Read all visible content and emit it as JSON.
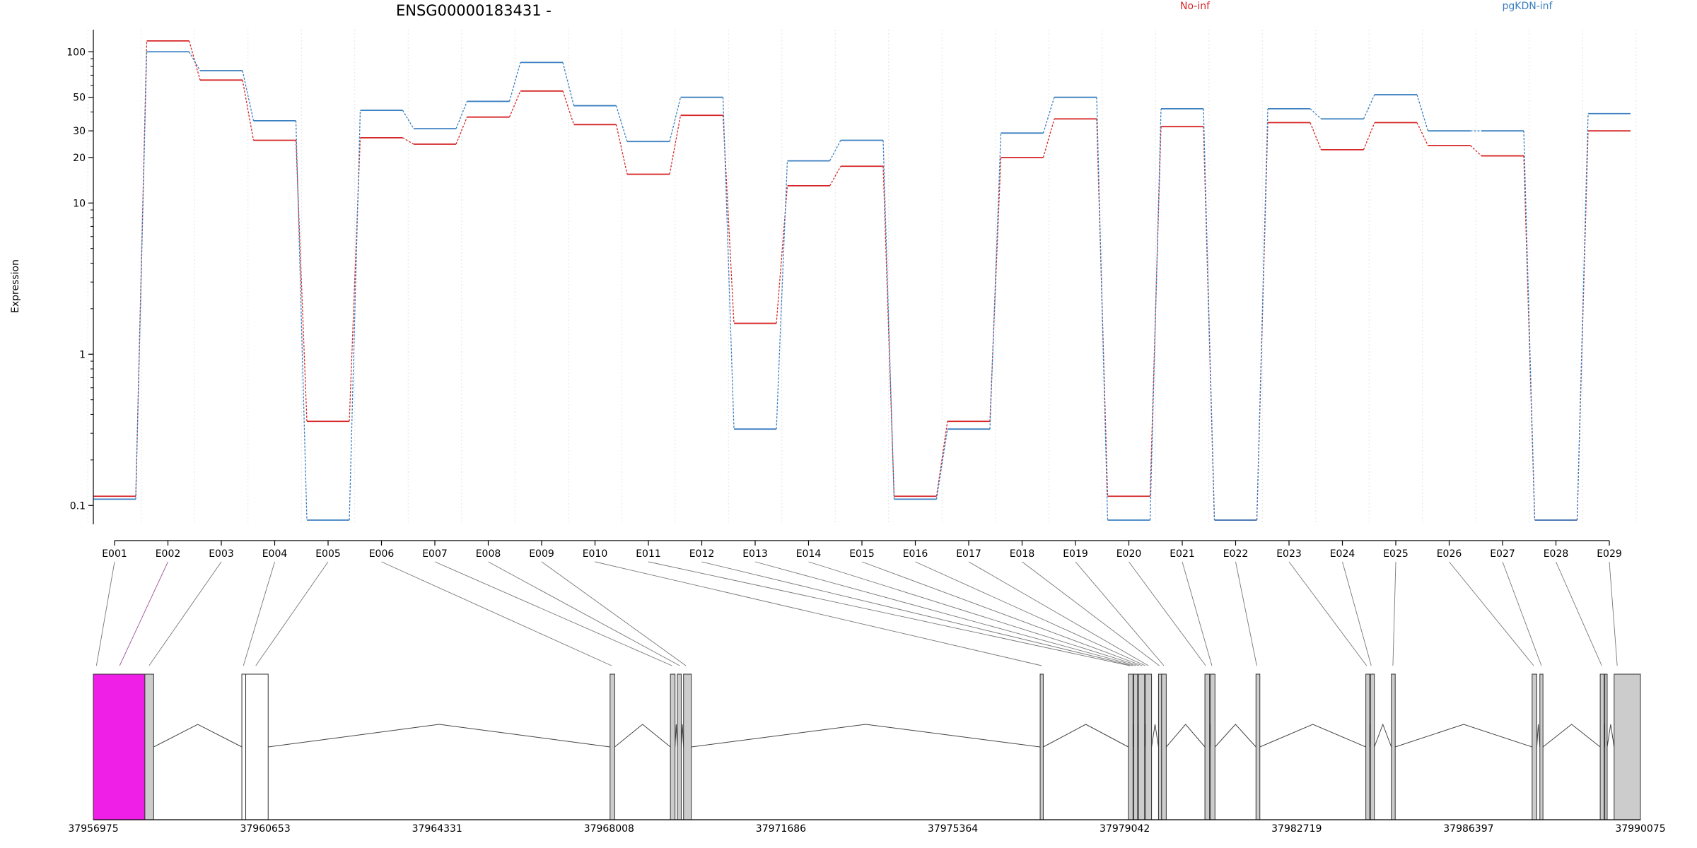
{
  "title": "ENSG00000183431 -",
  "ylabel": "Expression",
  "legend": [
    {
      "name": "No-inf",
      "color": "#d62728"
    },
    {
      "name": "pgKDN-inf",
      "color": "#3a7fc0"
    }
  ],
  "chart_data": {
    "type": "line",
    "scale": "log",
    "ylim": [
      0.075,
      140
    ],
    "yticks": [
      0.1,
      1,
      10,
      20,
      30,
      50,
      100
    ],
    "ytick_labels": [
      "0.1",
      "1",
      "10",
      "20",
      "30",
      "50",
      "100"
    ],
    "categories": [
      "E001",
      "E002",
      "E003",
      "E004",
      "E005",
      "E006",
      "E007",
      "E008",
      "E009",
      "E010",
      "E011",
      "E012",
      "E013",
      "E014",
      "E015",
      "E016",
      "E017",
      "E018",
      "E019",
      "E020",
      "E021",
      "E022",
      "E023",
      "E024",
      "E025",
      "E026",
      "E027",
      "E028",
      "E029"
    ],
    "series": [
      {
        "name": "No-inf",
        "color": "#d62728",
        "values": [
          0.115,
          118,
          65,
          26,
          0.36,
          27,
          24.5,
          37,
          55,
          33,
          15.5,
          38,
          1.6,
          13,
          17.5,
          0.115,
          0.36,
          20,
          36,
          0.115,
          32,
          0.08,
          34,
          22.5,
          34,
          24,
          20.5,
          0.08,
          30
        ]
      },
      {
        "name": "pgKDN-inf",
        "color": "#3a7fc0",
        "values": [
          0.11,
          100,
          75,
          35,
          0.08,
          41,
          31,
          47,
          85,
          44,
          25.5,
          50,
          0.32,
          19,
          26,
          0.11,
          0.32,
          29,
          50,
          0.08,
          42,
          0.08,
          42,
          36,
          52,
          30,
          30,
          0.08,
          39
        ]
      }
    ]
  },
  "gene_model": {
    "start": 37956975,
    "end": 37990075,
    "axis_labels": [
      "37956975",
      "37960653",
      "37964331",
      "37968008",
      "37971686",
      "37975364",
      "37979042",
      "37982719",
      "37986397",
      "37990075"
    ],
    "highlight_color": "#f01fe8",
    "exon_fill": "#cccccc",
    "exons": [
      {
        "s": 0.0,
        "e": 0.0333,
        "fill": "highlight"
      },
      {
        "s": 0.0333,
        "e": 0.039,
        "fill": "exon"
      },
      {
        "s": 0.096,
        "e": 0.0985,
        "fill": "outline"
      },
      {
        "s": 0.0985,
        "e": 0.113,
        "fill": "outline"
      },
      {
        "s": 0.334,
        "e": 0.337,
        "fill": "exon"
      },
      {
        "s": 0.373,
        "e": 0.376,
        "fill": "exon"
      },
      {
        "s": 0.3775,
        "e": 0.38,
        "fill": "exon"
      },
      {
        "s": 0.3815,
        "e": 0.3865,
        "fill": "exon"
      },
      {
        "s": 0.612,
        "e": 0.614,
        "fill": "exon"
      },
      {
        "s": 0.669,
        "e": 0.672,
        "fill": "exon"
      },
      {
        "s": 0.6725,
        "e": 0.675,
        "fill": "exon"
      },
      {
        "s": 0.6755,
        "e": 0.6795,
        "fill": "exon"
      },
      {
        "s": 0.68,
        "e": 0.684,
        "fill": "exon"
      },
      {
        "s": 0.6885,
        "e": 0.6905,
        "fill": "exon"
      },
      {
        "s": 0.6905,
        "e": 0.6935,
        "fill": "exon"
      },
      {
        "s": 0.7185,
        "e": 0.7215,
        "fill": "exon"
      },
      {
        "s": 0.722,
        "e": 0.725,
        "fill": "exon"
      },
      {
        "s": 0.7515,
        "e": 0.754,
        "fill": "exon"
      },
      {
        "s": 0.8225,
        "e": 0.825,
        "fill": "exon"
      },
      {
        "s": 0.8255,
        "e": 0.828,
        "fill": "exon"
      },
      {
        "s": 0.839,
        "e": 0.8415,
        "fill": "exon"
      },
      {
        "s": 0.93,
        "e": 0.933,
        "fill": "exon"
      },
      {
        "s": 0.935,
        "e": 0.937,
        "fill": "exon"
      },
      {
        "s": 0.974,
        "e": 0.9765,
        "fill": "exon"
      },
      {
        "s": 0.977,
        "e": 0.9785,
        "fill": "exon"
      },
      {
        "s": 0.983,
        "e": 1.0,
        "fill": "exon"
      }
    ],
    "exon_links": [
      {
        "f": 0.002,
        "color": "#777777"
      },
      {
        "f": 0.017,
        "color": "#a0559a"
      },
      {
        "f": 0.036,
        "color": "#777777"
      },
      {
        "f": 0.097,
        "color": "#777777"
      },
      {
        "f": 0.105,
        "color": "#777777"
      },
      {
        "f": 0.335,
        "color": "#777777"
      },
      {
        "f": 0.374,
        "color": "#777777"
      },
      {
        "f": 0.379,
        "color": "#777777"
      },
      {
        "f": 0.383,
        "color": "#777777"
      },
      {
        "f": 0.613,
        "color": "#777777"
      },
      {
        "f": 0.67,
        "color": "#777777"
      },
      {
        "f": 0.672,
        "color": "#777777"
      },
      {
        "f": 0.674,
        "color": "#777777"
      },
      {
        "f": 0.676,
        "color": "#777777"
      },
      {
        "f": 0.678,
        "color": "#777777"
      },
      {
        "f": 0.68,
        "color": "#777777"
      },
      {
        "f": 0.682,
        "color": "#777777"
      },
      {
        "f": 0.689,
        "color": "#777777"
      },
      {
        "f": 0.692,
        "color": "#777777"
      },
      {
        "f": 0.719,
        "color": "#777777"
      },
      {
        "f": 0.723,
        "color": "#777777"
      },
      {
        "f": 0.752,
        "color": "#777777"
      },
      {
        "f": 0.823,
        "color": "#777777"
      },
      {
        "f": 0.826,
        "color": "#777777"
      },
      {
        "f": 0.84,
        "color": "#777777"
      },
      {
        "f": 0.931,
        "color": "#777777"
      },
      {
        "f": 0.936,
        "color": "#777777"
      },
      {
        "f": 0.975,
        "color": "#777777"
      },
      {
        "f": 0.985,
        "color": "#777777"
      }
    ]
  }
}
